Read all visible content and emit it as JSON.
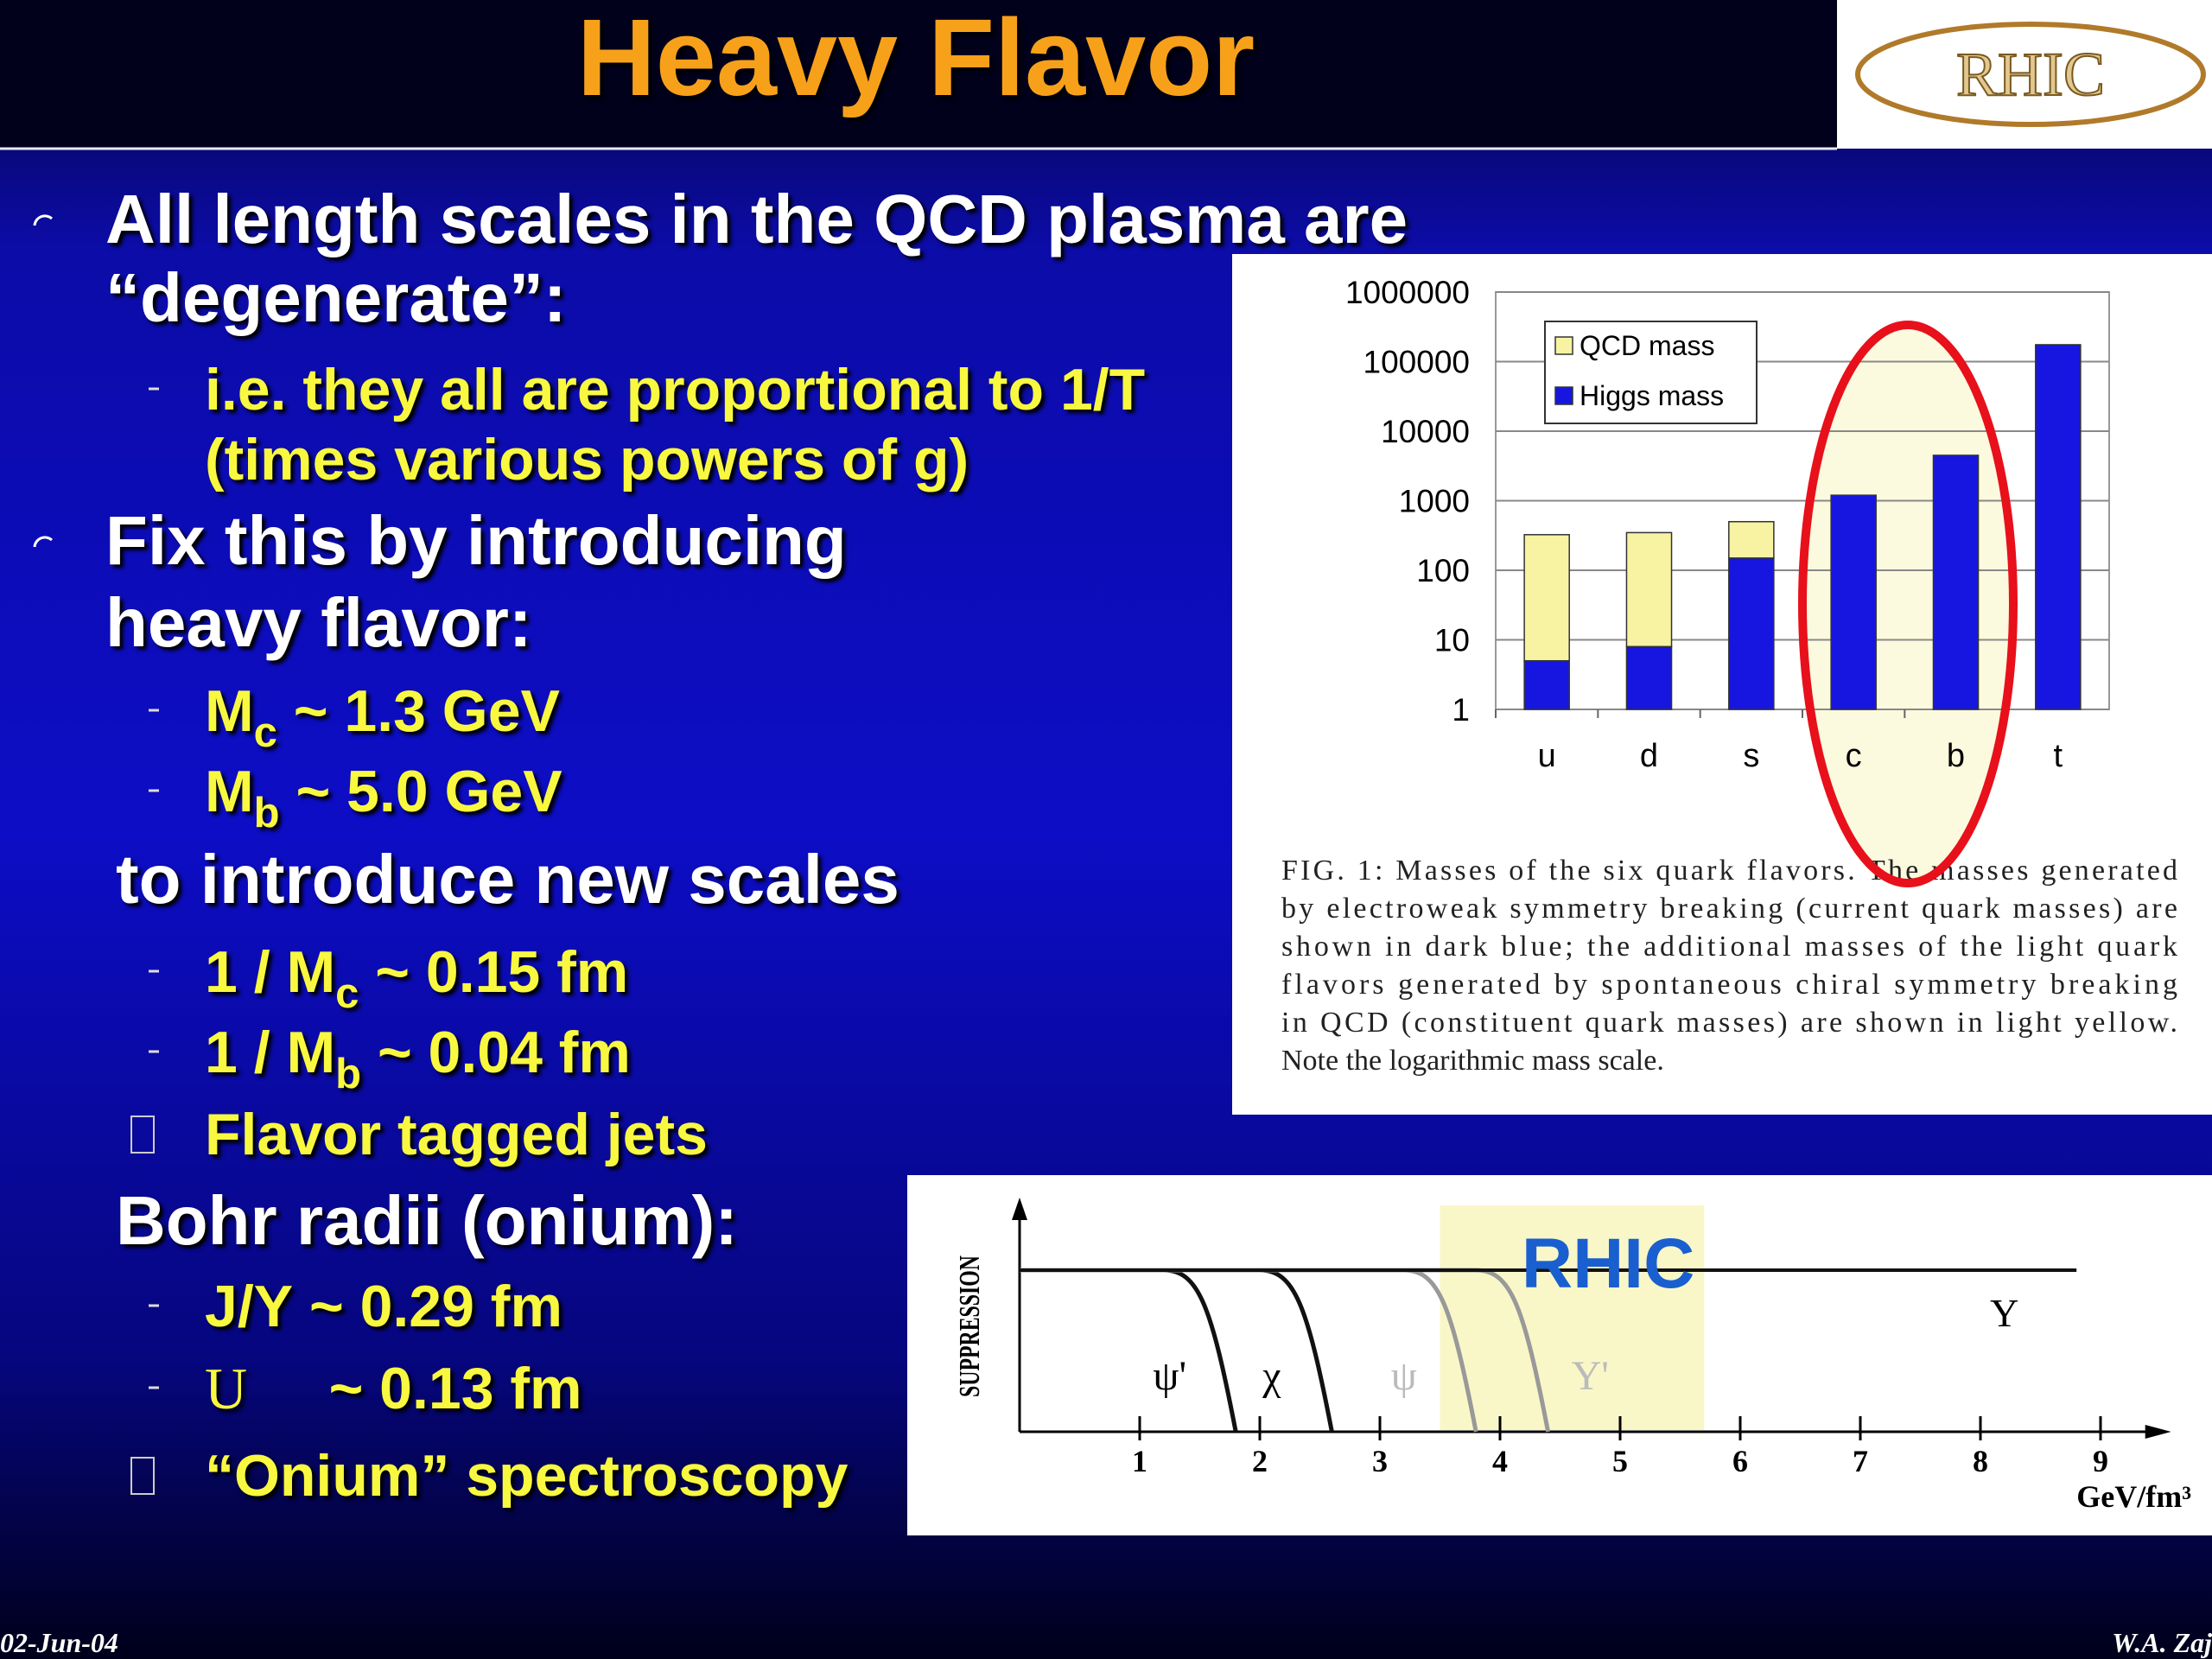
{
  "header": {
    "title": "Heavy Flavor",
    "logo": "RHIC"
  },
  "items": [
    {
      "lines": [
        [
          "All length scales in the QCD plasma are"
        ],
        [
          "“degenerate”:"
        ]
      ]
    },
    {
      "lines": [
        [
          "i.e. they all are proportional to 1/T"
        ],
        [
          "(times various powers of g)"
        ]
      ]
    },
    {
      "lines": [
        [
          "Fix this by introducing"
        ],
        [
          "heavy flavor:"
        ]
      ]
    },
    {
      "lines": [
        [
          "M",
          {
            "sub": "c"
          },
          " ~ 1.3 GeV"
        ]
      ]
    },
    {
      "lines": [
        [
          "M",
          {
            "sub": "b"
          },
          " ~ 5.0 GeV"
        ]
      ]
    },
    {
      "lines": [
        [
          "to introduce new scales"
        ]
      ]
    },
    {
      "lines": [
        [
          "1 / M",
          {
            "sub": "c"
          },
          " ~ 0.15 fm"
        ]
      ]
    },
    {
      "lines": [
        [
          "1 / M",
          {
            "sub": "b"
          },
          " ~ 0.04 fm"
        ]
      ]
    },
    {
      "lines": [
        [
          "Flavor tagged jets"
        ]
      ]
    },
    {
      "lines": [
        [
          "Bohr radii (onium):"
        ]
      ]
    },
    {
      "lines": [
        [
          "J/Υ ~ 0.29 fm"
        ]
      ]
    },
    {
      "lines": [
        [
          "U",
          "     ~ 0.13 fm"
        ]
      ]
    },
    {
      "lines": [
        [
          "“Onium” spectroscopy"
        ]
      ]
    }
  ],
  "chart_data": [
    {
      "type": "bar",
      "stacked": true,
      "log": true,
      "grid": true,
      "legend": "top-left",
      "categories": [
        "u",
        "d",
        "s",
        "c",
        "b",
        "t"
      ],
      "series": [
        {
          "name": "QCD mass",
          "color": "#f7f3a3",
          "values": [
            320,
            340,
            350,
            null,
            null,
            null
          ]
        },
        {
          "name": "Higgs mass",
          "color": "#1616e0",
          "values": [
            5,
            8,
            150,
            1200,
            4500,
            175000
          ]
        }
      ],
      "ylim": [
        1,
        1000000
      ],
      "yticks": [
        1,
        10,
        100,
        1000,
        10000,
        100000,
        1000000
      ],
      "caption": [
        "FIG. 1: Masses of the six quark flavors. The masses generated",
        "by electroweak symmetry breaking (current quark masses) are",
        "shown in dark blue; the additional masses of the light quark",
        "flavors generated by spontaneous chiral symmetry breaking",
        "in QCD (constituent quark masses) are shown in light yellow.",
        "Note the logarithmic mass scale."
      ]
    },
    {
      "type": "threshold",
      "ylabel": "SUPPRESSION",
      "xlabel": "GeV/fm³",
      "categories": [
        "ψ'",
        "χ",
        "ψ",
        "Υ'",
        "Υ"
      ],
      "values": [
        1.8,
        2.6,
        3.8,
        4.4,
        null
      ],
      "xlim": [
        0,
        9.3
      ],
      "xticks": [
        1,
        2,
        3,
        4,
        5,
        6,
        7,
        8,
        9
      ],
      "annotation": {
        "text": "RHIC",
        "range": [
          3.5,
          5.7
        ]
      }
    }
  ],
  "footer": {
    "left": "02-Jun-04",
    "right": "W.A. Zaj"
  }
}
